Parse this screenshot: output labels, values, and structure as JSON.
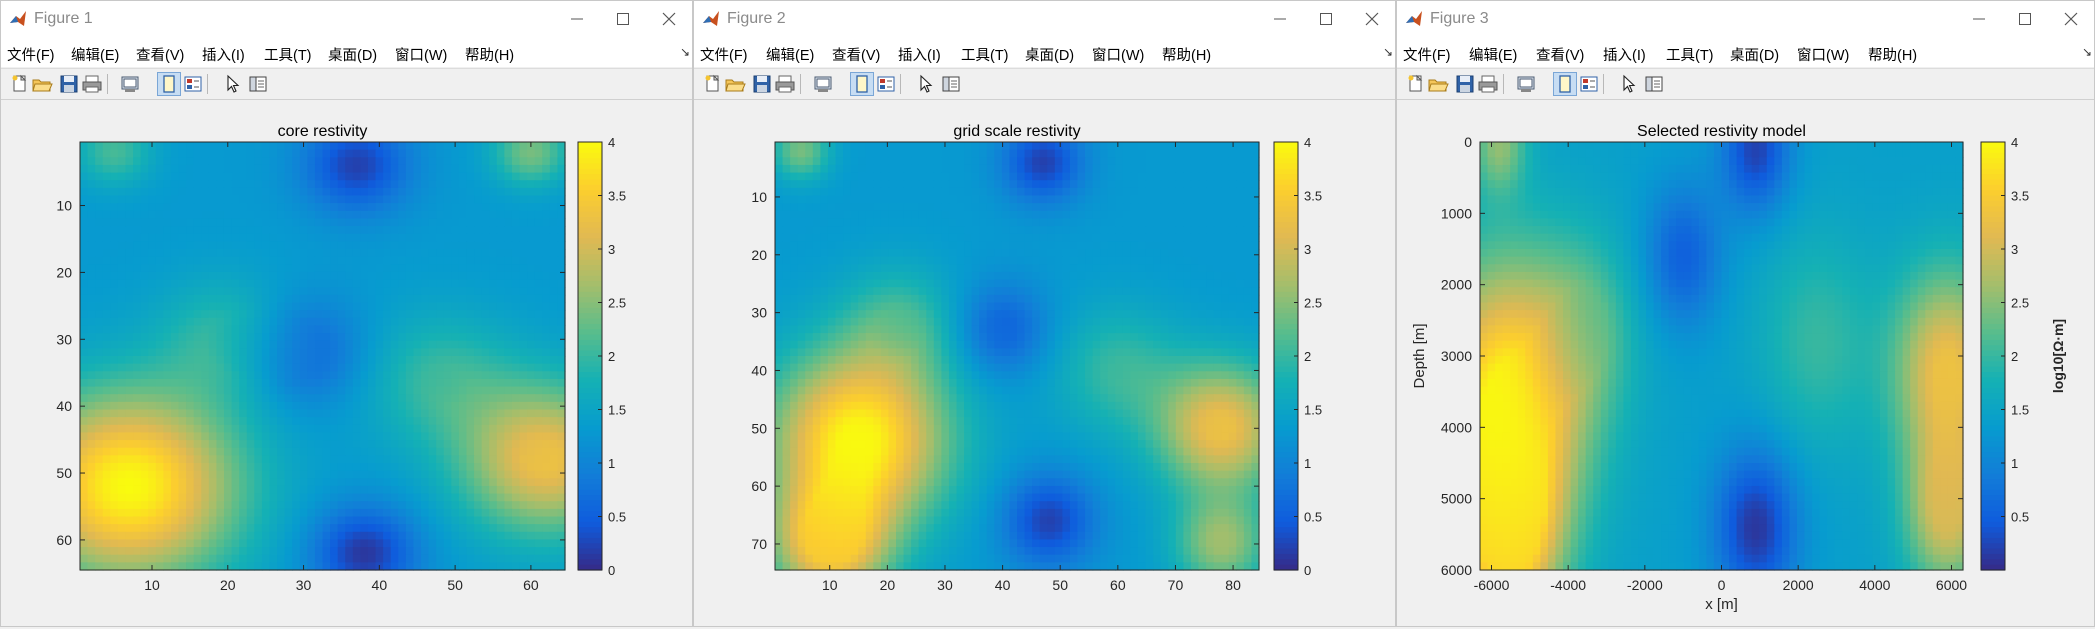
{
  "menu_labels": [
    "文件(F)",
    "编辑(E)",
    "查看(V)",
    "插入(I)",
    "工具(T)",
    "桌面(D)",
    "窗口(W)",
    "帮助(H)"
  ],
  "toolbar_icons": [
    "new-figure",
    "open-file",
    "save",
    "print",
    "print-preview",
    "dock-figure",
    "data-cursor",
    "select-arrow",
    "property-editor"
  ],
  "colormap": "parula",
  "windows": [
    {
      "title": "Figure 1",
      "menu_more": "↘",
      "axes": {
        "title": "core restivity",
        "xticks": [
          "10",
          "20",
          "30",
          "40",
          "50",
          "60"
        ],
        "yticks": [
          "10",
          "20",
          "30",
          "40",
          "50",
          "60"
        ],
        "xlabel": "",
        "ylabel": "",
        "xlim": [
          0.5,
          64.5
        ],
        "ylim": [
          0.5,
          64.5
        ],
        "colorbar_ticks": [
          "0",
          "0.5",
          "1",
          "1.5",
          "2",
          "2.5",
          "3",
          "3.5",
          "4"
        ],
        "colorbar_label": ""
      }
    },
    {
      "title": "Figure 2",
      "menu_more": "↘",
      "axes": {
        "title": "grid scale restivity",
        "xticks": [
          "10",
          "20",
          "30",
          "40",
          "50",
          "60",
          "70",
          "80"
        ],
        "yticks": [
          "10",
          "20",
          "30",
          "40",
          "50",
          "60",
          "70"
        ],
        "xlabel": "",
        "ylabel": "",
        "xlim": [
          0.5,
          84.5
        ],
        "ylim": [
          0.5,
          74.5
        ],
        "colorbar_ticks": [
          "0",
          "0.5",
          "1",
          "1.5",
          "2",
          "2.5",
          "3",
          "3.5",
          "4"
        ],
        "colorbar_label": ""
      }
    },
    {
      "title": "Figure 3",
      "menu_more": "↘",
      "axes": {
        "title": "Selected restivity model",
        "xticks": [
          "-6000",
          "-4000",
          "-2000",
          "0",
          "2000",
          "4000",
          "6000"
        ],
        "yticks": [
          "0",
          "1000",
          "2000",
          "3000",
          "4000",
          "5000",
          "6000"
        ],
        "xlabel": "x [m]",
        "ylabel": "Depth [m]",
        "xlim": [
          -6300,
          6300
        ],
        "ylim": [
          0,
          6000
        ],
        "colorbar_ticks": [
          "0.5",
          "1",
          "1.5",
          "2",
          "2.5",
          "3",
          "3.5",
          "4"
        ],
        "colorbar_label": "log10[Ω·m]"
      }
    }
  ],
  "chart_data": [
    {
      "type": "heatmap",
      "title": "core restivity",
      "x_range": [
        1,
        64
      ],
      "y_range": [
        1,
        64
      ],
      "y_direction": "down",
      "clim": [
        0,
        4
      ],
      "colormap": "parula",
      "background_level": 1.3,
      "features": [
        {
          "x": 7,
          "y": 52,
          "level": 4.0,
          "radius": 14
        },
        {
          "x": 62,
          "y": 48,
          "level": 3.3,
          "radius": 11
        },
        {
          "x": 38,
          "y": 62,
          "level": 0.1,
          "radius": 7
        },
        {
          "x": 37,
          "y": 4,
          "level": 0.2,
          "radius": 7
        },
        {
          "x": 30,
          "y": 32,
          "level": 0.5,
          "radius": 8
        },
        {
          "x": 48,
          "y": 36,
          "level": 2.0,
          "radius": 10
        },
        {
          "x": 20,
          "y": 30,
          "level": 2.0,
          "radius": 9
        },
        {
          "x": 60,
          "y": 2,
          "level": 2.4,
          "radius": 5
        },
        {
          "x": 5,
          "y": 2,
          "level": 2.1,
          "radius": 5
        }
      ]
    },
    {
      "type": "heatmap",
      "title": "grid scale restivity",
      "x_range": [
        1,
        84
      ],
      "y_range": [
        1,
        74
      ],
      "y_direction": "down",
      "clim": [
        0,
        4
      ],
      "colormap": "parula",
      "background_level": 1.3,
      "features": [
        {
          "x": 15,
          "y": 52,
          "level": 4.0,
          "radius": 15
        },
        {
          "x": 10,
          "y": 70,
          "level": 3.4,
          "radius": 10
        },
        {
          "x": 78,
          "y": 50,
          "level": 3.3,
          "radius": 11
        },
        {
          "x": 78,
          "y": 70,
          "level": 2.6,
          "radius": 8
        },
        {
          "x": 48,
          "y": 66,
          "level": 0.2,
          "radius": 8
        },
        {
          "x": 47,
          "y": 4,
          "level": 0.2,
          "radius": 7
        },
        {
          "x": 40,
          "y": 33,
          "level": 0.5,
          "radius": 8
        },
        {
          "x": 60,
          "y": 40,
          "level": 2.0,
          "radius": 11
        },
        {
          "x": 22,
          "y": 32,
          "level": 2.0,
          "radius": 10
        },
        {
          "x": 5,
          "y": 2,
          "level": 2.4,
          "radius": 5
        }
      ]
    },
    {
      "type": "heatmap",
      "title": "Selected restivity model",
      "xlabel": "x [m]",
      "ylabel": "Depth [m]",
      "colorbar_label": "log10[Ω·m]",
      "x_range": [
        -6300,
        6300
      ],
      "y_range": [
        0,
        6000
      ],
      "y_direction": "down",
      "clim": [
        0,
        4
      ],
      "colormap": "parula",
      "background_level": 1.4,
      "features": [
        {
          "x": -5600,
          "y": 3700,
          "level": 4.0,
          "radius": 2000
        },
        {
          "x": -5600,
          "y": 5500,
          "level": 3.5,
          "radius": 1300
        },
        {
          "x": 5900,
          "y": 3200,
          "level": 3.3,
          "radius": 1400
        },
        {
          "x": 5900,
          "y": 5200,
          "level": 3.0,
          "radius": 1100
        },
        {
          "x": 900,
          "y": 5400,
          "level": 0.1,
          "radius": 1100
        },
        {
          "x": 900,
          "y": 100,
          "level": 0.2,
          "radius": 900
        },
        {
          "x": -1000,
          "y": 1600,
          "level": 0.5,
          "radius": 1000
        },
        {
          "x": 2500,
          "y": 2800,
          "level": 2.0,
          "radius": 1500
        },
        {
          "x": -3500,
          "y": 2600,
          "level": 2.0,
          "radius": 1300
        },
        {
          "x": -5800,
          "y": 0,
          "level": 2.5,
          "radius": 700
        }
      ]
    }
  ]
}
